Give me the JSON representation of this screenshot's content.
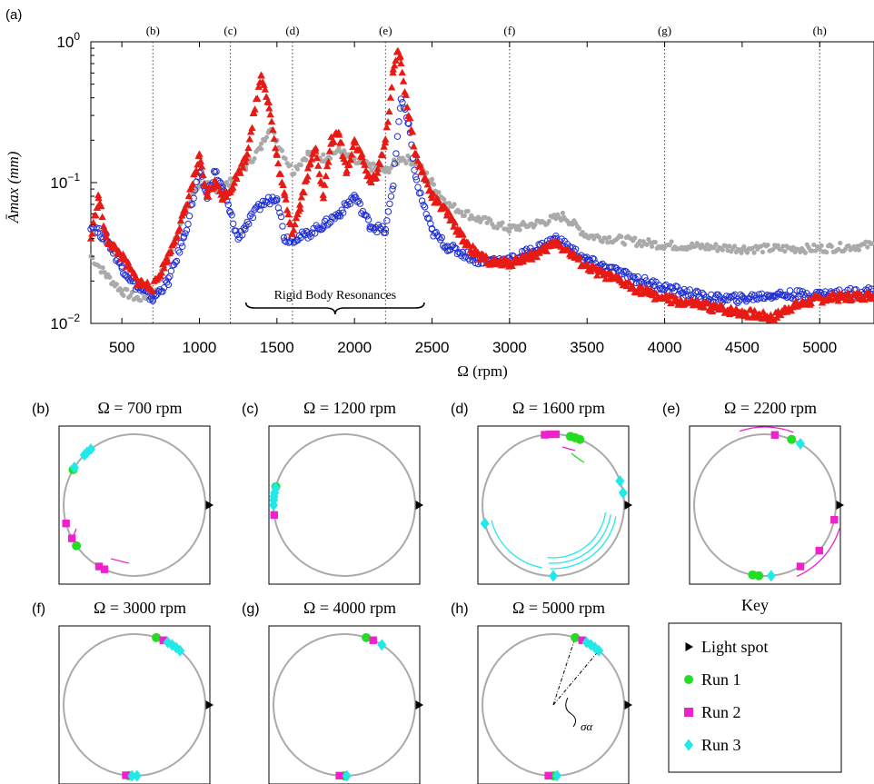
{
  "chart_data": [
    {
      "panel": "(a)",
      "type": "scatter",
      "xlabel": "Ω (rpm)",
      "ylabel": "Āmax (mm)",
      "xlim": [
        300,
        5350
      ],
      "ylim": [
        0.01,
        1
      ],
      "yscale": "log",
      "xticks": [
        500,
        1000,
        1500,
        2000,
        2500,
        3000,
        3500,
        4000,
        4500,
        5000
      ],
      "yticks": [
        {
          "base": "10",
          "exp": "−2",
          "value": 0.01
        },
        {
          "base": "10",
          "exp": "−1",
          "value": 0.1
        },
        {
          "base": "10",
          "exp": "0",
          "value": 1
        }
      ],
      "reference_lines": [
        {
          "label": "(b)",
          "x": 700
        },
        {
          "label": "(c)",
          "x": 1200
        },
        {
          "label": "(d)",
          "x": 1600
        },
        {
          "label": "(e)",
          "x": 2200
        },
        {
          "label": "(f)",
          "x": 3000
        },
        {
          "label": "(g)",
          "x": 4000
        },
        {
          "label": "(h)",
          "x": 5000
        }
      ],
      "annotation": {
        "text": "Rigid Body Resonances",
        "x_range": [
          1300,
          2450
        ]
      },
      "series": [
        {
          "color": "#aaaaaa",
          "marker": "dot",
          "x": [
            300,
            400,
            500,
            600,
            700,
            800,
            900,
            1000,
            1100,
            1200,
            1300,
            1400,
            1450,
            1500,
            1600,
            1700,
            1800,
            1900,
            2000,
            2100,
            2200,
            2300,
            2400,
            2500,
            2600,
            2800,
            3000,
            3200,
            3350,
            3500,
            4000,
            4500,
            5000,
            5350
          ],
          "y": [
            0.03,
            0.022,
            0.017,
            0.015,
            0.016,
            0.03,
            0.06,
            0.1,
            0.09,
            0.1,
            0.13,
            0.18,
            0.25,
            0.2,
            0.12,
            0.16,
            0.15,
            0.17,
            0.14,
            0.13,
            0.12,
            0.15,
            0.14,
            0.1,
            0.07,
            0.055,
            0.047,
            0.052,
            0.058,
            0.042,
            0.036,
            0.034,
            0.034,
            0.036
          ]
        },
        {
          "color": "#1f2fd6",
          "marker": "circle",
          "x": [
            300,
            400,
            500,
            600,
            700,
            800,
            900,
            1000,
            1050,
            1100,
            1150,
            1200,
            1250,
            1300,
            1400,
            1500,
            1550,
            1600,
            1700,
            1800,
            1900,
            2000,
            2100,
            2200,
            2250,
            2300,
            2350,
            2400,
            2500,
            2600,
            2800,
            3000,
            3200,
            3300,
            3500,
            3800,
            4000,
            4300,
            4500,
            4700,
            5000,
            5350
          ],
          "y": [
            0.05,
            0.04,
            0.025,
            0.018,
            0.015,
            0.02,
            0.04,
            0.12,
            0.08,
            0.12,
            0.09,
            0.06,
            0.04,
            0.05,
            0.07,
            0.08,
            0.04,
            0.04,
            0.043,
            0.05,
            0.06,
            0.08,
            0.05,
            0.045,
            0.1,
            0.4,
            0.25,
            0.1,
            0.045,
            0.035,
            0.028,
            0.028,
            0.035,
            0.04,
            0.028,
            0.021,
            0.018,
            0.015,
            0.015,
            0.016,
            0.016,
            0.017
          ]
        },
        {
          "color": "#e81a14",
          "marker": "triangle",
          "x": [
            300,
            350,
            400,
            500,
            600,
            700,
            800,
            900,
            1000,
            1050,
            1100,
            1150,
            1200,
            1300,
            1350,
            1400,
            1450,
            1500,
            1550,
            1600,
            1650,
            1700,
            1750,
            1800,
            1850,
            1900,
            1950,
            2000,
            2050,
            2100,
            2150,
            2200,
            2250,
            2280,
            2300,
            2350,
            2400,
            2500,
            2600,
            2700,
            2800,
            2900,
            3000,
            3200,
            3300,
            3500,
            3800,
            4000,
            4300,
            4500,
            4700,
            4800,
            5000,
            5350
          ],
          "y": [
            0.04,
            0.08,
            0.04,
            0.03,
            0.02,
            0.018,
            0.03,
            0.06,
            0.15,
            0.08,
            0.1,
            0.08,
            0.09,
            0.15,
            0.3,
            0.6,
            0.35,
            0.15,
            0.08,
            0.045,
            0.07,
            0.12,
            0.18,
            0.08,
            0.2,
            0.22,
            0.12,
            0.2,
            0.15,
            0.1,
            0.12,
            0.2,
            0.6,
            0.9,
            0.7,
            0.3,
            0.15,
            0.08,
            0.06,
            0.04,
            0.03,
            0.027,
            0.027,
            0.032,
            0.038,
            0.025,
            0.018,
            0.015,
            0.013,
            0.012,
            0.011,
            0.013,
            0.015,
            0.016
          ]
        }
      ]
    },
    {
      "panel": "(b)",
      "type": "scatter",
      "title": "Ω = 700 rpm",
      "series": [
        {
          "color": "#22dd22",
          "marker": "circle",
          "angles_deg": [
            150,
            215
          ]
        },
        {
          "color": "#ee22cc",
          "marker": "square",
          "angles_deg": [
            195,
            208,
            240,
            245
          ]
        },
        {
          "color": "#22e8e8",
          "marker": "diamond",
          "angles_deg": [
            128,
            132,
            135,
            148
          ]
        }
      ]
    },
    {
      "panel": "(c)",
      "type": "scatter",
      "title": "Ω = 1200 rpm",
      "series": [
        {
          "color": "#22dd22",
          "marker": "circle",
          "angles_deg": [
            165
          ]
        },
        {
          "color": "#ee22cc",
          "marker": "square",
          "angles_deg": [
            188
          ]
        },
        {
          "color": "#22e8e8",
          "marker": "diamond",
          "angles_deg": [
            166,
            170,
            173,
            176,
            180
          ]
        }
      ]
    },
    {
      "panel": "(d)",
      "type": "scatter",
      "title": "Ω = 1600 rpm",
      "series": [
        {
          "color": "#22dd22",
          "marker": "circle",
          "angles_deg": [
            68,
            72,
            76
          ]
        },
        {
          "color": "#ee22cc",
          "marker": "square",
          "angles_deg": [
            88,
            93,
            97
          ]
        },
        {
          "color": "#22e8e8",
          "marker": "diamond",
          "angles_deg": [
            10,
            20,
            195,
            270
          ]
        }
      ]
    },
    {
      "panel": "(e)",
      "type": "scatter",
      "title": "Ω = 2200 rpm",
      "series": [
        {
          "color": "#22dd22",
          "marker": "circle",
          "angles_deg": [
            68,
            260,
            265
          ]
        },
        {
          "color": "#ee22cc",
          "marker": "square",
          "angles_deg": [
            82,
            348,
            320,
            300
          ]
        },
        {
          "color": "#22e8e8",
          "marker": "diamond",
          "angles_deg": [
            60,
            275
          ]
        }
      ]
    },
    {
      "panel": "(f)",
      "type": "scatter",
      "title": "Ω = 3000 rpm",
      "series": [
        {
          "color": "#22dd22",
          "marker": "circle",
          "angles_deg": [
            72,
            265
          ]
        },
        {
          "color": "#ee22cc",
          "marker": "square",
          "angles_deg": [
            66,
            263
          ]
        },
        {
          "color": "#22e8e8",
          "marker": "diamond",
          "angles_deg": [
            62,
            58,
            54,
            50,
            268,
            272
          ]
        }
      ]
    },
    {
      "panel": "(g)",
      "type": "scatter",
      "title": "Ω = 4000 rpm",
      "series": [
        {
          "color": "#22dd22",
          "marker": "circle",
          "angles_deg": [
            72,
            270
          ]
        },
        {
          "color": "#ee22cc",
          "marker": "square",
          "angles_deg": [
            66,
            266
          ]
        },
        {
          "color": "#22e8e8",
          "marker": "diamond",
          "angles_deg": [
            58,
            272
          ]
        }
      ]
    },
    {
      "panel": "(h)",
      "type": "scatter",
      "title": "Ω = 5000 rpm",
      "annotation": "σα",
      "series": [
        {
          "color": "#22dd22",
          "marker": "circle",
          "angles_deg": [
            72,
            270
          ]
        },
        {
          "color": "#ee22cc",
          "marker": "square",
          "angles_deg": [
            66,
            266
          ]
        },
        {
          "color": "#22e8e8",
          "marker": "diamond",
          "angles_deg": [
            62,
            58,
            54,
            50,
            273
          ]
        }
      ]
    }
  ],
  "key": {
    "title": "Key",
    "entries": [
      {
        "label": "Light spot",
        "marker": "triangle",
        "color": "#000000"
      },
      {
        "label": "Run 1",
        "marker": "circle",
        "color": "#22dd22"
      },
      {
        "label": "Run 2",
        "marker": "square",
        "color": "#ee22cc"
      },
      {
        "label": "Run 3",
        "marker": "diamond",
        "color": "#22e8e8"
      }
    ]
  },
  "panel_letters": [
    "(b)",
    "(c)",
    "(d)",
    "(e)",
    "(f)",
    "(g)",
    "(h)"
  ],
  "colors": {
    "track": "#aaaaaa",
    "arrow_run2": "#ee22cc",
    "arrow_run3": "#22e8e8",
    "arrow_run1": "#22dd22"
  }
}
